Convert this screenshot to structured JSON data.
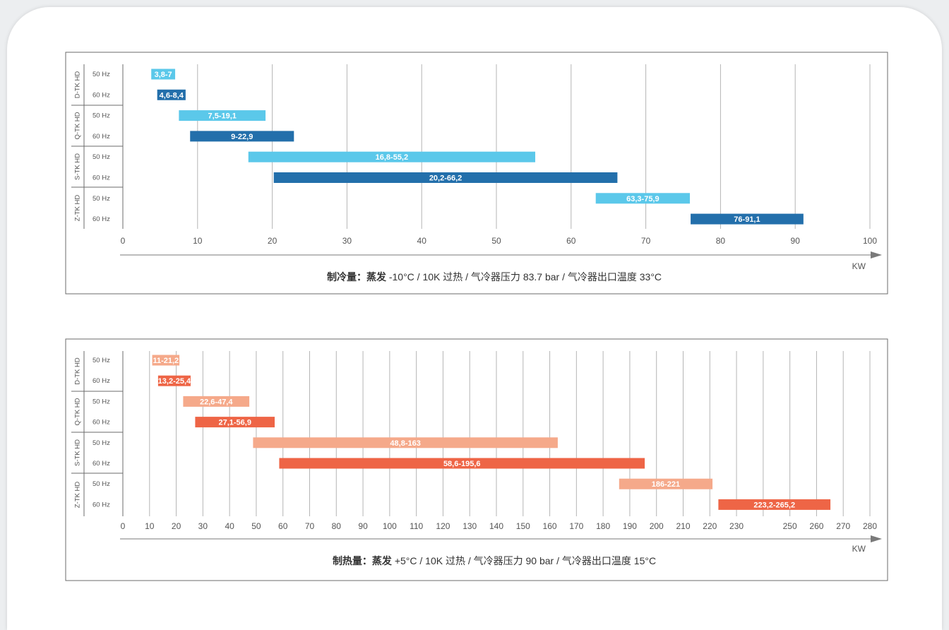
{
  "chart_data": [
    {
      "type": "bar",
      "orientation": "horizontal-range",
      "groups": [
        "D-TK HD",
        "Q-TK HD",
        "S-TK HD",
        "Z-TK HD"
      ],
      "rows": [
        "50 Hz",
        "60 Hz",
        "50 Hz",
        "60 Hz",
        "50 Hz",
        "60 Hz",
        "50 Hz",
        "60 Hz"
      ],
      "series": [
        {
          "range": [
            3.8,
            7
          ],
          "label": "3,8-7"
        },
        {
          "range": [
            4.6,
            8.4
          ],
          "label": "4,6-8,4"
        },
        {
          "range": [
            7.5,
            19.1
          ],
          "label": "7,5-19,1"
        },
        {
          "range": [
            9,
            22.9
          ],
          "label": "9-22,9"
        },
        {
          "range": [
            16.8,
            55.2
          ],
          "label": "16,8-55,2"
        },
        {
          "range": [
            20.2,
            66.2
          ],
          "label": "20,2-66,2"
        },
        {
          "range": [
            63.3,
            75.9
          ],
          "label": "63,3-75,9"
        },
        {
          "range": [
            76,
            91.1
          ],
          "label": "76-91,1"
        }
      ],
      "xticks": [
        "0",
        "10",
        "20",
        "30",
        "40",
        "50",
        "60",
        "70",
        "80",
        "90",
        "100"
      ],
      "xlim": [
        0,
        100
      ],
      "unit": "KW",
      "caption_bold": "制冷量：蒸发",
      "caption_rest": " -10°C / 10K 过热 / 气冷器压力 83.7 bar / 气冷器出口温度 33°C",
      "colors": {
        "50 Hz": "#5bc8ea",
        "60 Hz": "#236fab"
      },
      "grid": true
    },
    {
      "type": "bar",
      "orientation": "horizontal-range",
      "groups": [
        "D-TK HD",
        "Q-TK HD",
        "S-TK HD",
        "Z-TK HD"
      ],
      "rows": [
        "50 Hz",
        "60 Hz",
        "50 Hz",
        "60 Hz",
        "50 Hz",
        "60 Hz",
        "50 Hz",
        "60 Hz"
      ],
      "series": [
        {
          "range": [
            11,
            21.2
          ],
          "label": "11-21,2"
        },
        {
          "range": [
            13.2,
            25.4
          ],
          "label": "13,2-25,4"
        },
        {
          "range": [
            22.6,
            47.4
          ],
          "label": "22,6-47,4"
        },
        {
          "range": [
            27.1,
            56.9
          ],
          "label": "27,1-56,9"
        },
        {
          "range": [
            48.8,
            163
          ],
          "label": "48,8-163"
        },
        {
          "range": [
            58.6,
            195.6
          ],
          "label": "58,6-195,6"
        },
        {
          "range": [
            186,
            221
          ],
          "label": "186-221"
        },
        {
          "range": [
            223.2,
            265.2
          ],
          "label": "223,2-265,2"
        }
      ],
      "xticks": [
        "0",
        "10",
        "20",
        "30",
        "40",
        "50",
        "60",
        "70",
        "80",
        "90",
        "100",
        "110",
        "120",
        "130",
        "140",
        "150",
        "160",
        "170",
        "180",
        "190",
        "200",
        "210",
        "220",
        "230",
        "240",
        "250",
        "260",
        "270",
        "280"
      ],
      "xtick_labels_shown": [
        "0",
        "10",
        "20",
        "30",
        "40",
        "50",
        "60",
        "70",
        "80",
        "90",
        "100",
        "110",
        "120",
        "130",
        "140",
        "150",
        "160",
        "170",
        "180",
        "190",
        "200",
        "210",
        "220",
        "230",
        "",
        "250",
        "260",
        "270",
        "280"
      ],
      "xlim": [
        0,
        280
      ],
      "unit": "KW",
      "caption_bold": "制热量：蒸发",
      "caption_rest": " +5°C / 10K 过热 / 气冷器压力 90 bar / 气冷器出口温度 15°C",
      "colors": {
        "50 Hz": "#f5a98a",
        "60 Hz": "#ee6546"
      },
      "grid": true
    }
  ]
}
